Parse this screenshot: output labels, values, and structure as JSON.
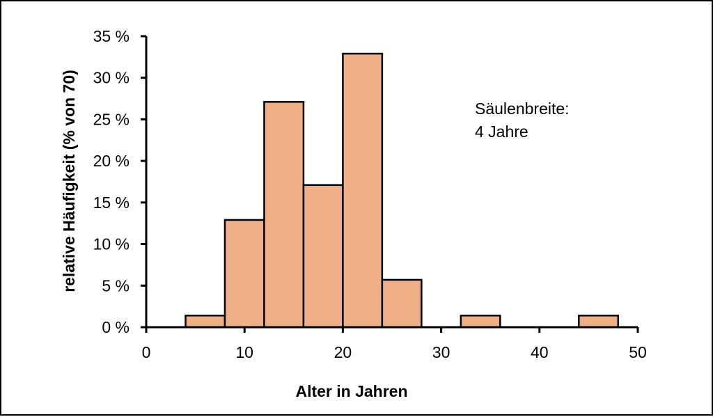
{
  "chart_data": {
    "type": "bar",
    "subtype": "histogram",
    "xlabel": "Alter in Jahren",
    "ylabel": "relative Häufigkeit (% von 70)",
    "xlim": [
      0,
      50
    ],
    "ylim": [
      0,
      35
    ],
    "x_ticks": [
      0,
      10,
      20,
      30,
      40,
      50
    ],
    "y_ticks": [
      0,
      5,
      10,
      15,
      20,
      25,
      30,
      35
    ],
    "y_tick_labels": [
      "0 %",
      "5 %",
      "10 %",
      "15 %",
      "20 %",
      "25 %",
      "30 %",
      "35 %"
    ],
    "bin_width": 4,
    "bins": [
      {
        "from": 4,
        "to": 8,
        "value": 1.4
      },
      {
        "from": 8,
        "to": 12,
        "value": 12.9
      },
      {
        "from": 12,
        "to": 16,
        "value": 27.1
      },
      {
        "from": 16,
        "to": 20,
        "value": 17.1
      },
      {
        "from": 20,
        "to": 24,
        "value": 32.9
      },
      {
        "from": 24,
        "to": 28,
        "value": 5.7
      },
      {
        "from": 32,
        "to": 36,
        "value": 1.4
      },
      {
        "from": 44,
        "to": 48,
        "value": 1.4
      }
    ],
    "annotation": [
      "Säulenbreite:",
      "4 Jahre"
    ],
    "bar_color": "#efb088",
    "grid": false
  }
}
